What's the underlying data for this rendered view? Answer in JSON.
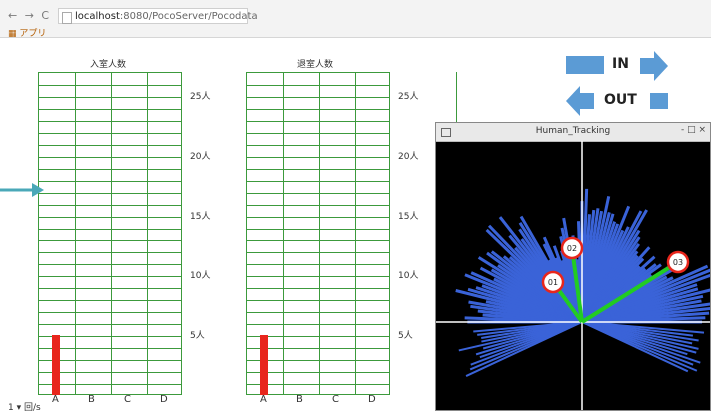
{
  "browser": {
    "nav_icons": "← → C",
    "url_host": "localhost",
    "url_rest": ":8080/PocoServer/Pocodata",
    "bookmark": "アプリ"
  },
  "legend": {
    "in_label": "IN",
    "out_label": "OUT"
  },
  "window": {
    "title": "Human_Tracking",
    "controls": "- □ ×"
  },
  "tracks": [
    "01",
    "02",
    "03"
  ],
  "bottom_text": "1 ▾ 回/s",
  "colors": {
    "grid": "#3c9a3c",
    "bar": "#e8261c",
    "arrow": "#5b9bd5",
    "scan": "#3a63d8",
    "track": "#22cc22",
    "marker": "#e8261c"
  },
  "chart_data": [
    {
      "type": "bar",
      "title": "入室人数",
      "categories": [
        "A",
        "B",
        "C",
        "D"
      ],
      "values": [
        5,
        0,
        0,
        0
      ],
      "ylim": [
        0,
        27
      ],
      "y_ticks": [
        5,
        10,
        15,
        20,
        25
      ],
      "y_tick_labels": [
        "5人",
        "10人",
        "15人",
        "20人",
        "25人"
      ]
    },
    {
      "type": "bar",
      "title": "退室人数",
      "categories": [
        "A",
        "B",
        "C",
        "D"
      ],
      "values": [
        5,
        0,
        0,
        0
      ],
      "ylim": [
        0,
        27
      ],
      "y_ticks": [
        5,
        10,
        15,
        20,
        25
      ],
      "y_tick_labels": [
        "5人",
        "10人",
        "15人",
        "20人",
        "25人"
      ]
    }
  ]
}
